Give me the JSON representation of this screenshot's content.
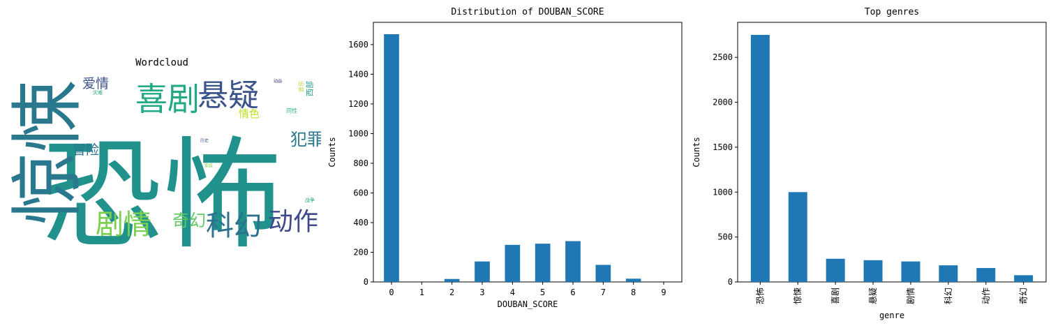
{
  "wordcloud": {
    "title": "Wordcloud",
    "words": [
      {
        "text": "恐怖",
        "color": "#21918c"
      },
      {
        "text": "惊悚",
        "color": "#2a788e"
      },
      {
        "text": "喜剧",
        "color": "#22a884"
      },
      {
        "text": "悬疑",
        "color": "#3b528b"
      },
      {
        "text": "剧情",
        "color": "#7ad151"
      },
      {
        "text": "科幻",
        "color": "#2c728e"
      },
      {
        "text": "动作",
        "color": "#3e4a89"
      },
      {
        "text": "奇幻",
        "color": "#5ec962"
      },
      {
        "text": "犯罪",
        "color": "#2a788e"
      },
      {
        "text": "爱情",
        "color": "#3b528b"
      },
      {
        "text": "冒险",
        "color": "#2c728e"
      },
      {
        "text": "情色",
        "color": "#bddf26"
      },
      {
        "text": "同性",
        "color": "#35b779"
      },
      {
        "text": "灾难",
        "color": "#22a884"
      },
      {
        "text": "动画",
        "color": "#472c7a"
      },
      {
        "text": "历史",
        "color": "#3b528b"
      },
      {
        "text": "家庭",
        "color": "#7ad151"
      },
      {
        "text": "战争",
        "color": "#22a884"
      },
      {
        "text": "音乐",
        "color": "#a8db34"
      },
      {
        "text": "西部",
        "color": "#1fa187"
      }
    ]
  },
  "chart_data": [
    {
      "type": "bar",
      "title": "Distribution of DOUBAN_SCORE",
      "xlabel": "DOUBAN_SCORE",
      "ylabel": "Counts",
      "categories": [
        "0",
        "1",
        "2",
        "3",
        "4",
        "5",
        "6",
        "7",
        "8",
        "9"
      ],
      "values": [
        1670,
        0,
        20,
        138,
        250,
        258,
        275,
        115,
        22,
        0
      ],
      "ylim": [
        0,
        1750
      ],
      "yticks": [
        "0",
        "200",
        "400",
        "600",
        "800",
        "1000",
        "1200",
        "1400",
        "1600"
      ],
      "bar_color": "#1f77b4"
    },
    {
      "type": "bar",
      "title": "Top genres",
      "xlabel": "genre",
      "ylabel": "Counts",
      "categories": [
        "恐怖",
        "惊悚",
        "喜剧",
        "悬疑",
        "剧情",
        "科幻",
        "动作",
        "奇幻"
      ],
      "values": [
        2750,
        1000,
        258,
        242,
        228,
        185,
        155,
        75
      ],
      "ylim": [
        0,
        2890
      ],
      "yticks": [
        "0",
        "500",
        "1000",
        "1500",
        "2000",
        "2500"
      ],
      "bar_color": "#1f77b4"
    }
  ]
}
